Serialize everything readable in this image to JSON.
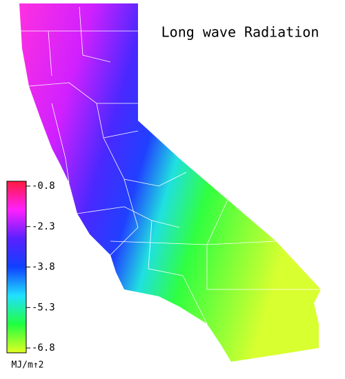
{
  "title": "Long wave Radiation",
  "colorbar": {
    "ticks": [
      -0.8,
      -2.3,
      -3.8,
      -5.3,
      -6.8
    ],
    "colors": [
      "#ff1a3c",
      "#ff20ff",
      "#5a20ff",
      "#1040ff",
      "#20e0ff",
      "#20ff40",
      "#e0ff20"
    ],
    "unit": "MJ/m↑2"
  }
}
